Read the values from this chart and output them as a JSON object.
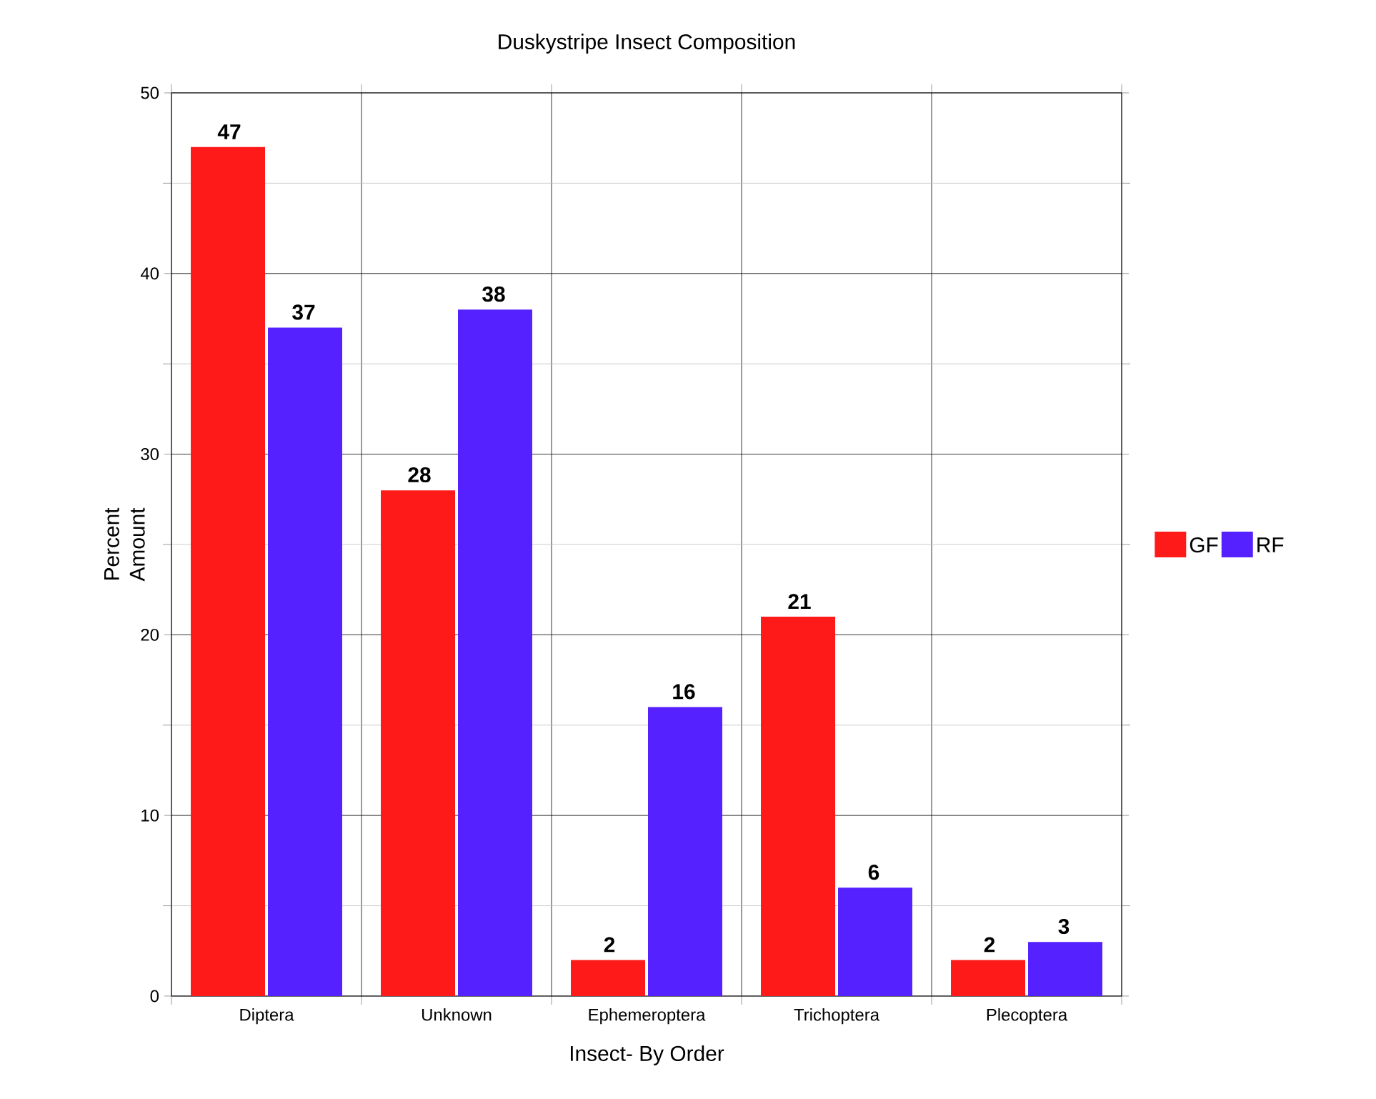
{
  "chart_data": {
    "type": "bar",
    "title": "Duskystripe Insect Composition",
    "xlabel": "Insect- By Order",
    "ylabel": "Percent Amount",
    "categories": [
      "Diptera",
      "Unknown",
      "Ephemeroptera",
      "Trichoptera",
      "Plecoptera"
    ],
    "series": [
      {
        "name": "GF",
        "color": "#ff1a1a",
        "values": [
          47,
          28,
          2,
          21,
          2
        ]
      },
      {
        "name": "RF",
        "color": "#5522ff",
        "values": [
          37,
          38,
          16,
          6,
          3
        ]
      }
    ],
    "ylim": [
      0,
      50
    ],
    "yticks": [
      0,
      10,
      20,
      30,
      40,
      50
    ],
    "grid": true,
    "legend": "right",
    "data_labels": true
  }
}
